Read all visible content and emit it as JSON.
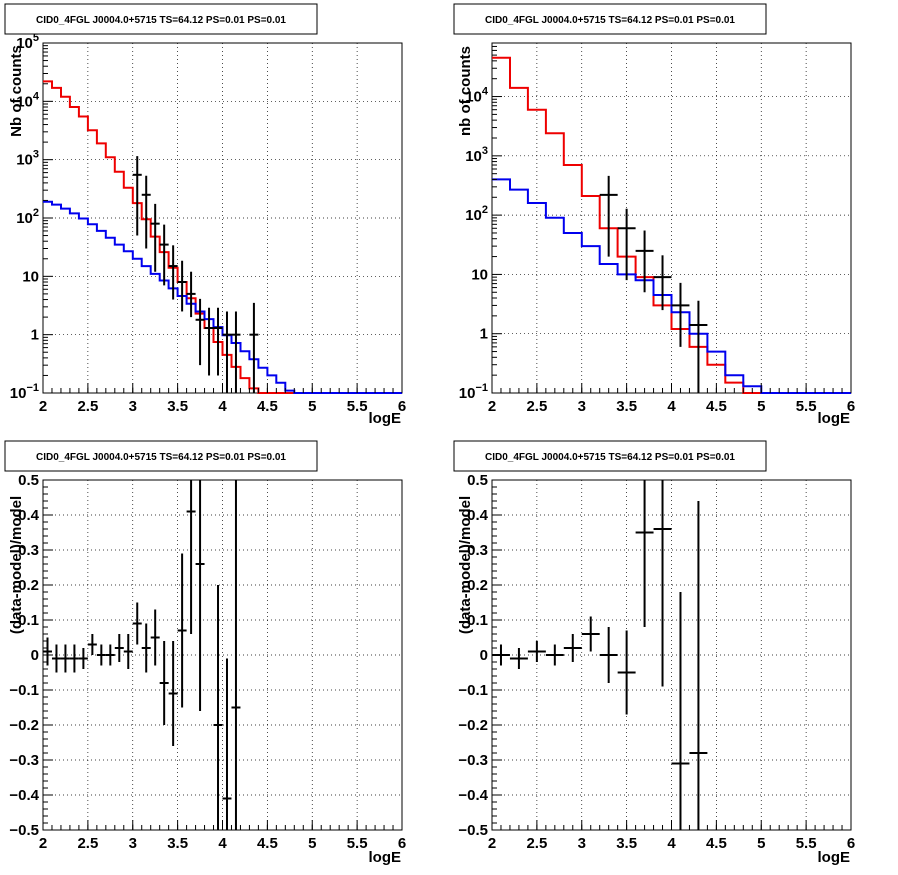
{
  "chart_data": [
    {
      "type": "line",
      "title": "CID0_4FGL J0004.0+5715 TS=64.12 PS=0.01 PS=0.01",
      "xlabel": "logE",
      "ylabel": "Nb of counts",
      "yscale": "log",
      "xlim": [
        2,
        6
      ],
      "ylim": [
        0.1,
        100000
      ],
      "grid": true,
      "xticks": [
        "2",
        "2.5",
        "3",
        "3.5",
        "4",
        "4.5",
        "5",
        "5.5",
        "6"
      ],
      "yticks": [
        "10⁻¹",
        "1",
        "10",
        "10²",
        "10³",
        "10⁴",
        "10⁵"
      ],
      "bin_edges": [
        2.0,
        2.1,
        2.2,
        2.3,
        2.4,
        2.5,
        2.6,
        2.7,
        2.8,
        2.9,
        3.0,
        3.1,
        3.2,
        3.3,
        3.4,
        3.5,
        3.6,
        3.7,
        3.8,
        3.9,
        4.0,
        4.1,
        4.2,
        4.3,
        4.4,
        4.5,
        4.6,
        4.7,
        4.8,
        4.9,
        5.0,
        5.1,
        5.2,
        5.3,
        5.4,
        5.5,
        5.6,
        5.7,
        5.8,
        5.9,
        6.0
      ],
      "series": [
        {
          "color": "#ee0000",
          "style": "step",
          "values": [
            22000,
            17000,
            12000,
            8000,
            5500,
            3200,
            1900,
            1100,
            620,
            330,
            180,
            95,
            48,
            26,
            14,
            8,
            4.2,
            2.3,
            1.3,
            0.75,
            0.45,
            0.28,
            0.18,
            0.12,
            0.1,
            0.1,
            0.1,
            0.1,
            0.1,
            0.1,
            0.1,
            0.1,
            0.1,
            0.1,
            0.1,
            0.1,
            0.1,
            0.1,
            0.1,
            0.1
          ]
        },
        {
          "color": "#0000ee",
          "style": "step",
          "values": [
            190,
            170,
            145,
            120,
            98,
            78,
            60,
            46,
            35,
            27,
            20,
            15,
            11,
            8.5,
            6.2,
            4.6,
            3.4,
            2.5,
            1.85,
            1.35,
            0.98,
            0.72,
            0.52,
            0.38,
            0.27,
            0.2,
            0.15,
            0.11,
            0.1,
            0.1,
            0.1,
            0.1,
            0.1,
            0.1,
            0.1,
            0.1,
            0.1,
            0.1,
            0.1,
            0.1
          ]
        },
        {
          "color": "#000000",
          "style": "errorbar",
          "x": [
            3.05,
            3.15,
            3.25,
            3.35,
            3.45,
            3.55,
            3.65,
            3.75,
            3.85,
            3.95,
            4.05,
            4.15,
            4.35
          ],
          "values": [
            550,
            250,
            80,
            35,
            15,
            8,
            5,
            1.8,
            1.3,
            1.3,
            1,
            1,
            1
          ],
          "xerr": 0.05,
          "yerr_low": [
            500,
            220,
            68,
            28,
            11,
            5.5,
            3,
            1.5,
            1.1,
            1.1,
            0.9,
            0.9,
            0.9
          ],
          "yerr_high": [
            600,
            280,
            95,
            42,
            19,
            10.5,
            7,
            2.3,
            1.6,
            1.6,
            1.5,
            1.5,
            2.5
          ]
        }
      ]
    },
    {
      "type": "line",
      "title": "CID0_4FGL J0004.0+5715 TS=64.12 PS=0.01 PS=0.01",
      "xlabel": "logE",
      "ylabel": "nb of counts",
      "yscale": "log",
      "xlim": [
        2,
        6
      ],
      "ylim": [
        0.1,
        80000
      ],
      "grid": true,
      "xticks": [
        "2",
        "2.5",
        "3",
        "3.5",
        "4",
        "4.5",
        "5",
        "5.5",
        "6"
      ],
      "yticks": [
        "10⁻¹",
        "1",
        "10",
        "10²",
        "10³",
        "10⁴"
      ],
      "bin_edges": [
        2.0,
        2.2,
        2.4,
        2.6,
        2.8,
        3.0,
        3.2,
        3.4,
        3.6,
        3.8,
        4.0,
        4.2,
        4.4,
        4.6,
        4.8,
        5.0,
        5.2,
        5.4,
        5.6,
        5.8,
        6.0
      ],
      "series": [
        {
          "color": "#ee0000",
          "style": "step",
          "values": [
            45000,
            14000,
            6000,
            2400,
            700,
            210,
            60,
            20,
            9,
            3,
            1.2,
            0.6,
            0.3,
            0.15,
            0.1,
            0.1,
            0.1,
            0.1,
            0.1,
            0.1
          ]
        },
        {
          "color": "#0000ee",
          "style": "step",
          "values": [
            400,
            270,
            160,
            90,
            50,
            30,
            15,
            10,
            8,
            4.5,
            2.3,
            1,
            0.5,
            0.2,
            0.13,
            0.1,
            0.1,
            0.1,
            0.1,
            0.1
          ]
        },
        {
          "color": "#000000",
          "style": "errorbar",
          "x": [
            3.3,
            3.5,
            3.7,
            3.9,
            4.1,
            4.3
          ],
          "values": [
            220,
            60,
            25,
            9,
            3,
            1.4
          ],
          "xerr": 0.1,
          "yerr_low": [
            200,
            52,
            20,
            6.5,
            2.4,
            1.3
          ],
          "yerr_high": [
            240,
            68,
            30,
            12,
            4.2,
            2.2
          ]
        }
      ]
    },
    {
      "type": "scatter",
      "title": "CID0_4FGL J0004.0+5715 TS=64.12 PS=0.01 PS=0.01",
      "xlabel": "logE",
      "ylabel": "(data-model)/model",
      "xlim": [
        2,
        6
      ],
      "ylim": [
        -0.5,
        0.5
      ],
      "grid": true,
      "xticks": [
        "2",
        "2.5",
        "3",
        "3.5",
        "4",
        "4.5",
        "5",
        "5.5",
        "6"
      ],
      "yticks": [
        "−0.5",
        "−0.4",
        "−0.3",
        "−0.2",
        "−0.1",
        "0",
        "0.1",
        "0.2",
        "0.3",
        "0.4",
        "0.5"
      ],
      "series": [
        {
          "color": "#000000",
          "style": "errorbar",
          "xerr": 0.05,
          "x": [
            2.05,
            2.15,
            2.25,
            2.35,
            2.45,
            2.55,
            2.65,
            2.75,
            2.85,
            2.95,
            3.05,
            3.15,
            3.25,
            3.35,
            3.45,
            3.55,
            3.65,
            3.75,
            3.95,
            4.05,
            4.15
          ],
          "values": [
            0.01,
            -0.01,
            -0.01,
            -0.01,
            -0.01,
            0.03,
            0.0,
            0.0,
            0.02,
            0.01,
            0.09,
            0.02,
            0.05,
            -0.08,
            -0.11,
            0.07,
            0.41,
            0.26,
            -0.2,
            -0.41,
            -0.15
          ],
          "yerr_low": [
            0.04,
            0.04,
            0.04,
            0.04,
            0.03,
            0.03,
            0.03,
            0.03,
            0.04,
            0.05,
            0.06,
            0.07,
            0.08,
            0.12,
            0.15,
            0.22,
            0.35,
            0.42,
            0.4,
            0.4,
            0.4
          ],
          "yerr_high": [
            0.04,
            0.04,
            0.04,
            0.04,
            0.03,
            0.03,
            0.03,
            0.03,
            0.04,
            0.05,
            0.06,
            0.07,
            0.08,
            0.12,
            0.15,
            0.22,
            0.35,
            0.42,
            0.4,
            0.4,
            0.65
          ]
        }
      ]
    },
    {
      "type": "scatter",
      "title": "CID0_4FGL J0004.0+5715 TS=64.12 PS=0.01 PS=0.01",
      "xlabel": "logE",
      "ylabel": "(data-model)/model",
      "xlim": [
        2,
        6
      ],
      "ylim": [
        -0.5,
        0.5
      ],
      "grid": true,
      "xticks": [
        "2",
        "2.5",
        "3",
        "3.5",
        "4",
        "4.5",
        "5",
        "5.5",
        "6"
      ],
      "yticks": [
        "−0.5",
        "−0.4",
        "−0.3",
        "−0.2",
        "−0.1",
        "0",
        "0.1",
        "0.2",
        "0.3",
        "0.4",
        "0.5"
      ],
      "series": [
        {
          "color": "#000000",
          "style": "errorbar",
          "xerr": 0.1,
          "x": [
            2.1,
            2.3,
            2.5,
            2.7,
            2.9,
            3.1,
            3.3,
            3.5,
            3.7,
            3.9,
            4.1,
            4.3
          ],
          "values": [
            0.0,
            -0.01,
            0.01,
            0.0,
            0.02,
            0.06,
            0.0,
            -0.05,
            0.35,
            0.36,
            -0.31,
            -0.28
          ],
          "yerr_low": [
            0.03,
            0.03,
            0.03,
            0.03,
            0.04,
            0.05,
            0.08,
            0.12,
            0.27,
            0.45,
            0.49,
            0.55
          ],
          "yerr_high": [
            0.03,
            0.03,
            0.03,
            0.03,
            0.04,
            0.05,
            0.08,
            0.12,
            0.27,
            0.45,
            0.49,
            0.72
          ]
        }
      ]
    }
  ]
}
